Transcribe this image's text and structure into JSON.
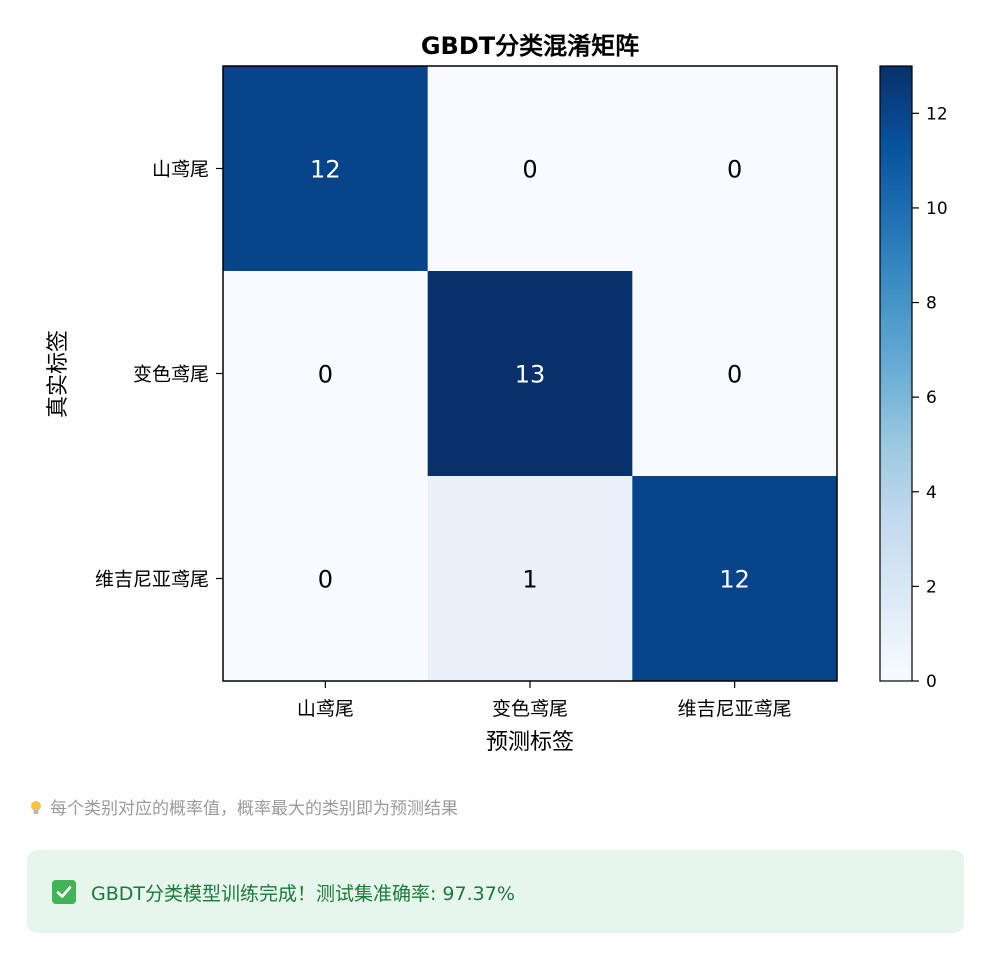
{
  "chart_data": {
    "type": "heatmap",
    "title": "GBDT分类混淆矩阵",
    "xlabel": "预测标签",
    "ylabel": "真实标签",
    "x_categories": [
      "山鸢尾",
      "变色鸢尾",
      "维吉尼亚鸢尾"
    ],
    "y_categories": [
      "山鸢尾",
      "变色鸢尾",
      "维吉尼亚鸢尾"
    ],
    "values": [
      [
        12,
        0,
        0
      ],
      [
        0,
        13,
        0
      ],
      [
        0,
        1,
        12
      ]
    ],
    "colorbar": {
      "range": [
        0,
        13
      ],
      "ticks": [
        "0",
        "2",
        "4",
        "6",
        "8",
        "10",
        "12"
      ],
      "colormap": "Blues"
    },
    "colors": {
      "low": "#f7fbff",
      "high": "#08306b"
    }
  },
  "note": {
    "icon": "lightbulb-icon",
    "text": "每个类别对应的概率值，概率最大的类别即为预测结果"
  },
  "success": {
    "icon": "check-icon",
    "text": "GBDT分类模型训练完成！测试集准确率: 97.37%"
  }
}
